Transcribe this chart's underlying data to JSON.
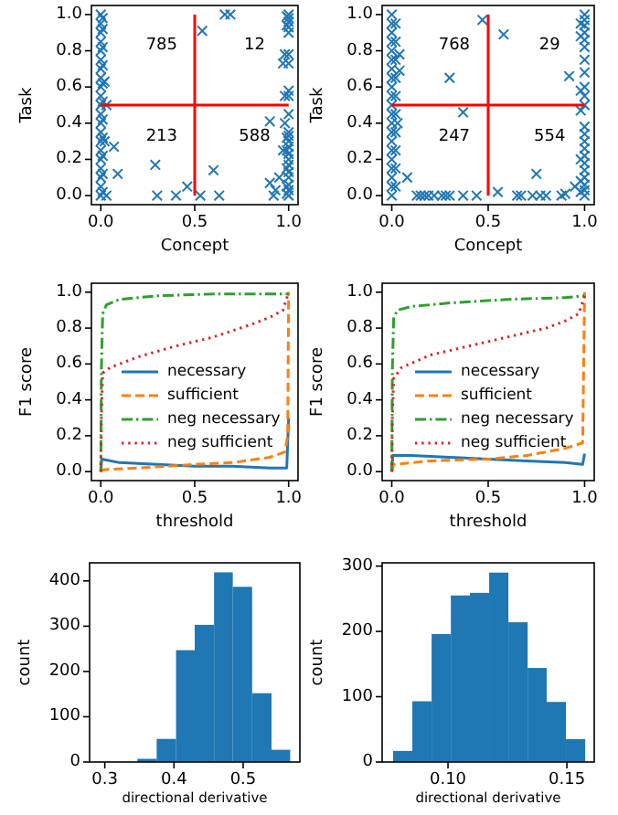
{
  "chart_data": [
    {
      "type": "scatter",
      "xlabel": "Concept",
      "ylabel": "Task",
      "marker": "cross",
      "xlim": [
        -0.05,
        1.05
      ],
      "ylim": [
        -0.05,
        1.05
      ],
      "xticks": [
        {
          "value": 0,
          "label": "0.0"
        },
        {
          "value": 0.5,
          "label": "0.5"
        },
        {
          "value": 1,
          "label": "1.0"
        }
      ],
      "yticks": [
        {
          "value": 0,
          "label": "0.0"
        },
        {
          "value": 0.2,
          "label": "0.2"
        },
        {
          "value": 0.4,
          "label": "0.4"
        },
        {
          "value": 0.6,
          "label": "0.6"
        },
        {
          "value": 0.8,
          "label": "0.8"
        },
        {
          "value": 1,
          "label": "1.0"
        }
      ],
      "series": [
        {
          "color": "#1f77b4",
          "x": [
            0,
            0,
            0,
            0,
            0,
            0,
            0,
            0,
            0,
            0,
            0,
            0,
            0,
            0,
            0,
            0,
            0,
            0,
            0,
            0,
            0,
            0.01,
            0.01,
            0.01,
            0.01,
            0.01,
            0.01,
            0.01,
            0.01,
            0.01,
            0.01,
            0.01,
            1,
            1,
            1,
            1,
            1,
            1,
            1,
            1,
            1,
            1,
            1,
            1,
            1,
            1,
            1,
            1,
            1,
            1,
            1,
            1,
            1,
            1,
            0.99,
            0.99,
            0.99,
            0.99,
            0.99,
            0.99,
            0.99,
            0.07,
            0.09,
            0.03,
            0.29,
            0.3,
            0.4,
            0.46,
            0.53,
            0.6,
            0.63,
            0.54,
            0.66,
            0.69,
            0.9,
            0.9,
            0.93,
            0.92,
            0.98,
            0.97,
            0.98,
            0.98,
            0.97,
            0.95,
            0.02,
            0.03,
            0.02
          ],
          "values": [
            0,
            0.05,
            0.1,
            0.15,
            0.2,
            0.25,
            0.3,
            0.35,
            0.4,
            0.45,
            0.5,
            0.55,
            0.6,
            0.65,
            0.7,
            0.75,
            0.8,
            0.85,
            0.9,
            0.95,
            1,
            0.02,
            0.12,
            0.22,
            0.32,
            0.42,
            0.52,
            0.62,
            0.72,
            0.82,
            0.92,
            0.98,
            0,
            0.03,
            0.06,
            0.1,
            0.13,
            0.17,
            0.2,
            0.23,
            0.27,
            0.3,
            0.33,
            0.35,
            0.45,
            0.55,
            0.58,
            0.73,
            0.78,
            0.9,
            0.93,
            0.96,
            0.98,
            1,
            0.01,
            0.05,
            0.15,
            0.25,
            0.32,
            0.94,
            0.99,
            0.27,
            0.12,
            0,
            0.17,
            0,
            0,
            0.05,
            0,
            0.14,
            0,
            0.91,
            1,
            1,
            0.41,
            0.07,
            0.03,
            0,
            0.78,
            0.73,
            0.55,
            0.4,
            0.25,
            0.1,
            0.63,
            0.5,
            0.3
          ]
        },
        {
          "type": "line",
          "marker": "none",
          "color": "#ff0000",
          "x": [
            0.5,
            0.5
          ],
          "values": [
            0,
            1
          ]
        },
        {
          "type": "line",
          "marker": "none",
          "color": "#ff0000",
          "x": [
            0,
            1
          ],
          "values": [
            0.5,
            0.5
          ]
        }
      ],
      "annotations": [
        "785",
        "12",
        "213",
        "588"
      ]
    },
    {
      "type": "scatter",
      "xlabel": "Concept",
      "ylabel": "Task",
      "marker": "cross",
      "xlim": [
        -0.05,
        1.05
      ],
      "ylim": [
        -0.05,
        1.05
      ],
      "xticks": [
        {
          "value": 0,
          "label": "0.0"
        },
        {
          "value": 0.5,
          "label": "0.5"
        },
        {
          "value": 1,
          "label": "1.0"
        }
      ],
      "yticks": [
        {
          "value": 0,
          "label": "0.0"
        },
        {
          "value": 0.2,
          "label": "0.2"
        },
        {
          "value": 0.4,
          "label": "0.4"
        },
        {
          "value": 0.6,
          "label": "0.6"
        },
        {
          "value": 0.8,
          "label": "0.8"
        },
        {
          "value": 1,
          "label": "1.0"
        }
      ],
      "series": [
        {
          "color": "#1f77b4",
          "x": [
            0,
            0,
            0,
            0,
            0,
            0,
            0,
            0,
            0,
            0,
            0,
            0,
            0,
            0,
            0,
            0,
            0,
            0,
            0,
            0,
            0,
            0.02,
            0.02,
            0.02,
            0.02,
            0.02,
            0.02,
            0.02,
            0.02,
            0.02,
            0.02,
            1,
            1,
            1,
            1,
            1,
            1,
            1,
            1,
            1,
            1,
            1,
            1,
            1,
            1,
            1,
            1,
            1,
            1,
            1,
            1,
            1,
            1,
            0.98,
            0.98,
            0.98,
            0.98,
            0.98,
            0.98,
            0.98,
            0.04,
            0.04,
            0.03,
            0.08,
            0.13,
            0.15,
            0.17,
            0.19,
            0.22,
            0.26,
            0.28,
            0.3,
            0.37,
            0.44,
            0.55,
            0.65,
            0.67,
            0.73,
            0.77,
            0.8,
            0.88,
            0.9,
            0.47,
            0.58,
            0.3,
            0.37,
            0.75,
            0.92,
            0.95
          ],
          "values": [
            0,
            0.05,
            0.1,
            0.15,
            0.2,
            0.25,
            0.3,
            0.35,
            0.4,
            0.45,
            0.5,
            0.55,
            0.6,
            0.65,
            0.7,
            0.75,
            0.8,
            0.85,
            0.9,
            0.95,
            1,
            0.05,
            0.15,
            0.25,
            0.35,
            0.45,
            0.55,
            0.65,
            0.75,
            0.85,
            0.95,
            0,
            0.03,
            0.06,
            0.1,
            0.14,
            0.18,
            0.22,
            0.26,
            0.3,
            0.34,
            0.38,
            0.5,
            0.55,
            0.6,
            0.68,
            0.75,
            0.82,
            0.86,
            0.9,
            0.94,
            0.97,
            1,
            0.02,
            0.08,
            0.2,
            0.47,
            0.58,
            0.88,
            0.95,
            0.78,
            0.69,
            0.4,
            0.1,
            0,
            0,
            0,
            0,
            0,
            0,
            0,
            0,
            0,
            0,
            0.02,
            0,
            0,
            0,
            0,
            0,
            0,
            0.01,
            0.97,
            0.89,
            0.65,
            0.46,
            0.12,
            0.66,
            0.05
          ]
        },
        {
          "type": "line",
          "marker": "none",
          "color": "#ff0000",
          "x": [
            0.5,
            0.5
          ],
          "values": [
            0,
            1
          ]
        },
        {
          "type": "line",
          "marker": "none",
          "color": "#ff0000",
          "x": [
            0,
            1
          ],
          "values": [
            0.5,
            0.5
          ]
        }
      ],
      "annotations": [
        "768",
        "29",
        "247",
        "554"
      ]
    },
    {
      "type": "line",
      "xlabel": "threshold",
      "ylabel": "F1 score",
      "legend": "center",
      "xlim": [
        -0.05,
        1.05
      ],
      "ylim": [
        -0.05,
        1.05
      ],
      "xticks": [
        {
          "value": 0,
          "label": "0.0"
        },
        {
          "value": 0.5,
          "label": "0.5"
        },
        {
          "value": 1,
          "label": "1.0"
        }
      ],
      "yticks": [
        {
          "value": 0,
          "label": "0.0"
        },
        {
          "value": 0.2,
          "label": "0.2"
        },
        {
          "value": 0.4,
          "label": "0.4"
        },
        {
          "value": 0.6,
          "label": "0.6"
        },
        {
          "value": 0.8,
          "label": "0.8"
        },
        {
          "value": 1,
          "label": "1.0"
        }
      ],
      "series": [
        {
          "name": "necessary",
          "color": "#1f77b4",
          "line_style": "solid",
          "x": [
            0,
            0.005,
            0.1,
            0.3,
            0.5,
            0.7,
            0.9,
            0.99,
            1
          ],
          "values": [
            0,
            0.07,
            0.05,
            0.04,
            0.03,
            0.03,
            0.02,
            0.02,
            0.3
          ]
        },
        {
          "name": "sufficient",
          "color": "#ff7f0e",
          "line_style": "dashed",
          "x": [
            0,
            0.01,
            0.2,
            0.5,
            0.7,
            0.9,
            0.98,
            0.995,
            1
          ],
          "values": [
            0,
            0.01,
            0.02,
            0.04,
            0.05,
            0.08,
            0.11,
            0.2,
            1
          ]
        },
        {
          "name": "neg necessary",
          "color": "#2ca02c",
          "line_style": "dashdot",
          "x": [
            0,
            0.003,
            0.01,
            0.03,
            0.1,
            0.3,
            0.6,
            0.9,
            1
          ],
          "values": [
            0,
            0.57,
            0.88,
            0.93,
            0.96,
            0.98,
            0.99,
            0.99,
            0.99
          ]
        },
        {
          "name": "neg sufficient",
          "color": "#d62728",
          "line_style": "dotted",
          "x": [
            0,
            0.003,
            0.01,
            0.05,
            0.2,
            0.4,
            0.6,
            0.8,
            0.9,
            0.97,
            1
          ],
          "values": [
            0,
            0.3,
            0.55,
            0.58,
            0.64,
            0.7,
            0.75,
            0.82,
            0.86,
            0.9,
            1
          ]
        }
      ]
    },
    {
      "type": "line",
      "xlabel": "threshold",
      "ylabel": "F1 score",
      "legend": "center",
      "xlim": [
        -0.05,
        1.05
      ],
      "ylim": [
        -0.05,
        1.05
      ],
      "xticks": [
        {
          "value": 0,
          "label": "0.0"
        },
        {
          "value": 0.5,
          "label": "0.5"
        },
        {
          "value": 1,
          "label": "1.0"
        }
      ],
      "yticks": [
        {
          "value": 0,
          "label": "0.0"
        },
        {
          "value": 0.2,
          "label": "0.2"
        },
        {
          "value": 0.4,
          "label": "0.4"
        },
        {
          "value": 0.6,
          "label": "0.6"
        },
        {
          "value": 0.8,
          "label": "0.8"
        },
        {
          "value": 1,
          "label": "1.0"
        }
      ],
      "series": [
        {
          "name": "necessary",
          "color": "#1f77b4",
          "line_style": "solid",
          "x": [
            0,
            0.005,
            0.1,
            0.3,
            0.5,
            0.7,
            0.9,
            0.99,
            1
          ],
          "values": [
            0,
            0.09,
            0.09,
            0.08,
            0.07,
            0.06,
            0.05,
            0.04,
            0.1
          ]
        },
        {
          "name": "sufficient",
          "color": "#ff7f0e",
          "line_style": "dashed",
          "x": [
            0,
            0.01,
            0.2,
            0.5,
            0.7,
            0.9,
            0.99,
            1
          ],
          "values": [
            0,
            0.04,
            0.06,
            0.07,
            0.09,
            0.13,
            0.16,
            1
          ]
        },
        {
          "name": "neg necessary",
          "color": "#2ca02c",
          "line_style": "dashdot",
          "x": [
            0,
            0.003,
            0.01,
            0.03,
            0.1,
            0.3,
            0.6,
            0.9,
            1
          ],
          "values": [
            0,
            0.57,
            0.86,
            0.9,
            0.92,
            0.94,
            0.96,
            0.97,
            0.98
          ]
        },
        {
          "name": "neg sufficient",
          "color": "#d62728",
          "line_style": "dotted",
          "x": [
            0,
            0.003,
            0.01,
            0.05,
            0.2,
            0.4,
            0.6,
            0.8,
            0.9,
            0.97,
            1
          ],
          "values": [
            0,
            0.3,
            0.52,
            0.58,
            0.65,
            0.7,
            0.75,
            0.8,
            0.84,
            0.88,
            0.98
          ]
        }
      ]
    },
    {
      "type": "histogram",
      "xlabel": "directional derivative",
      "ylabel": "count",
      "color": "#1f77b4",
      "xlim": [
        0.278,
        0.582
      ],
      "ylim": [
        0,
        440
      ],
      "xticks": [
        0.3,
        0.4,
        0.5
      ],
      "yticks": [
        0,
        100,
        200,
        300,
        400
      ],
      "bins": [
        0.347,
        0.375,
        0.403,
        0.43,
        0.458,
        0.485,
        0.513,
        0.541,
        0.568
      ],
      "values": [
        7,
        51,
        247,
        303,
        419,
        387,
        152,
        27
      ]
    },
    {
      "type": "histogram",
      "xlabel": "directional derivative",
      "ylabel": "count",
      "color": "#1f77b4",
      "xlim": [
        0.0723,
        0.1615
      ],
      "ylim": [
        0,
        305
      ],
      "xticks": [
        {
          "value": 0.1,
          "label": "0.10"
        },
        {
          "value": 0.15,
          "label": "0.15"
        }
      ],
      "yticks": [
        0,
        100,
        200,
        300
      ],
      "bins": [
        0.0769,
        0.085,
        0.0931,
        0.1012,
        0.1092,
        0.1173,
        0.1254,
        0.1335,
        0.1415,
        0.1496,
        0.1577
      ],
      "values": [
        17,
        93,
        196,
        255,
        259,
        290,
        214,
        144,
        92,
        35
      ]
    }
  ]
}
